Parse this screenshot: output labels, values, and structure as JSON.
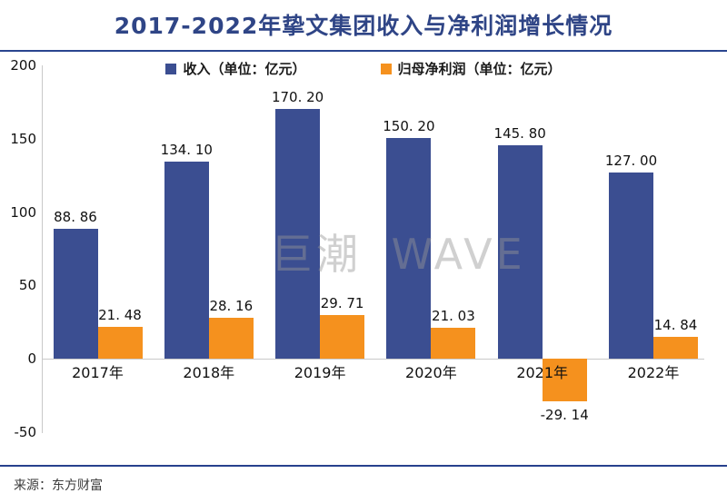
{
  "header": {
    "title": "2017-2022年挚文集团收入与净利润增长情况"
  },
  "watermark": {
    "text": "巨潮 WAVE"
  },
  "footer": {
    "source": "来源：东方财富"
  },
  "colors": {
    "revenue_bar": "#3B4E91",
    "profit_bar": "#F5911E",
    "title_navy": "#2F4586",
    "rule_navy": "#2A458F",
    "axis_gray": "#C9C9C9"
  },
  "chart_data": {
    "type": "bar",
    "title": "2017-2022年挚文集团收入与净利润增长情况",
    "categories": [
      "2017年",
      "2018年",
      "2019年",
      "2020年",
      "2021年",
      "2022年"
    ],
    "series": [
      {
        "name": "收入（单位：亿元）",
        "color": "#3B4E91",
        "values": [
          88.86,
          134.1,
          170.2,
          150.2,
          145.8,
          127.0
        ],
        "labels": [
          "88. 86",
          "134. 10",
          "170. 20",
          "150. 20",
          "145. 80",
          "127. 00"
        ]
      },
      {
        "name": "归母净利润（单位：亿元）",
        "color": "#F5911E",
        "values": [
          21.48,
          28.16,
          29.71,
          21.03,
          -29.14,
          14.84
        ],
        "labels": [
          "21. 48",
          "28. 16",
          "29. 71",
          "21. 03",
          "-29. 14",
          "14. 84"
        ]
      }
    ],
    "ylim": [
      -50,
      200
    ],
    "yticks": [
      200,
      150,
      100,
      50,
      0,
      -50
    ],
    "xlabel": "",
    "ylabel": "",
    "grid": false,
    "legend_position": "top",
    "data_labels": true
  }
}
